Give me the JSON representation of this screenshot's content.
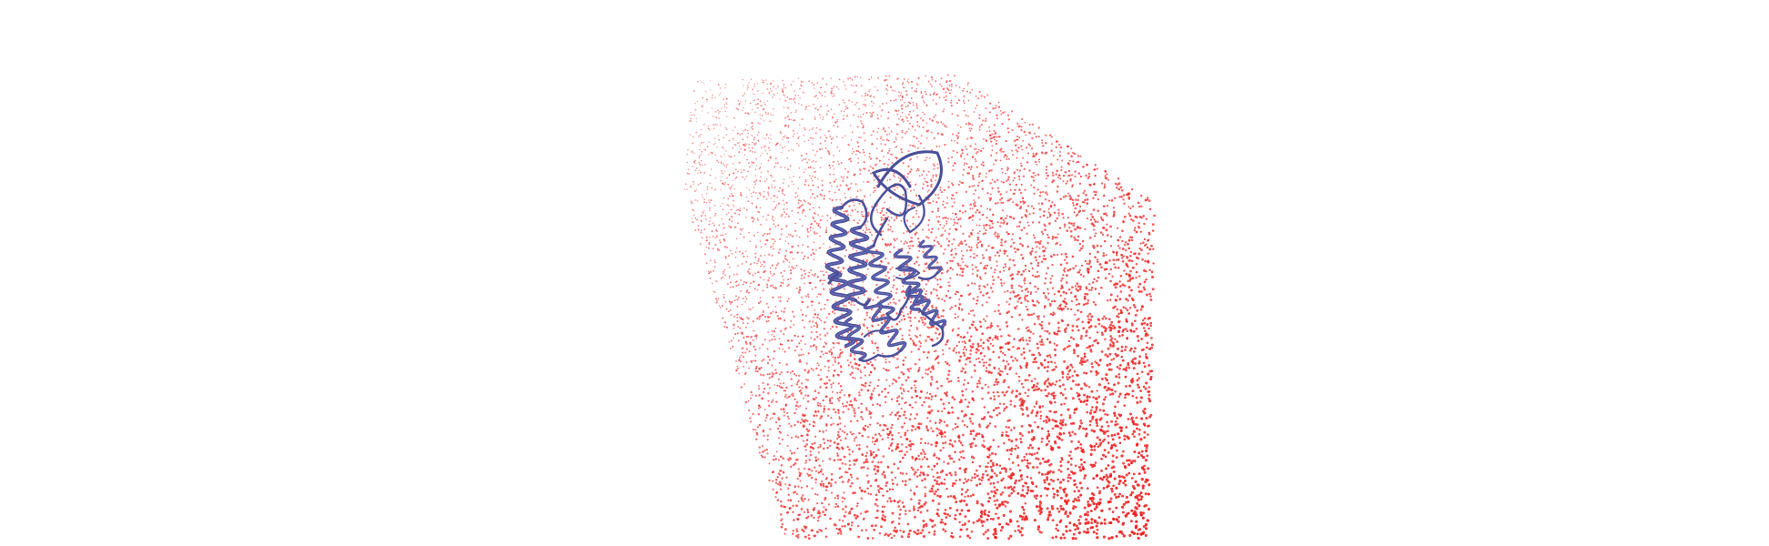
{
  "viewer": {
    "background": "#ffffff",
    "water_color": "#ee2222",
    "protein_color": "#4a4f9a",
    "protein_highlight_color": "#7a7fc4",
    "representation_water": "points",
    "representation_protein": "cartoon-ribbon"
  }
}
